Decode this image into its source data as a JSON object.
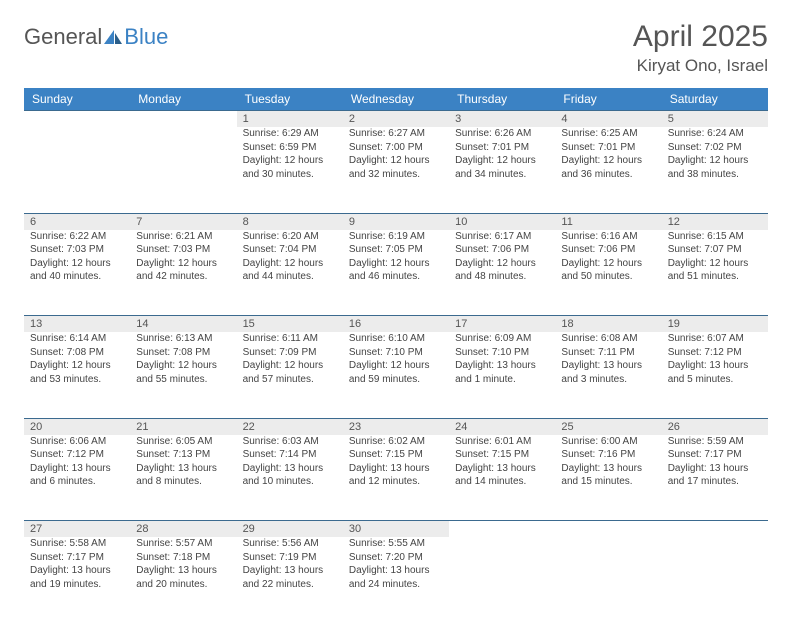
{
  "logo": {
    "word1": "General",
    "word2": "Blue"
  },
  "title": "April 2025",
  "location": "Kiryat Ono, Israel",
  "colors": {
    "header_bg": "#3b82c4",
    "header_text": "#ffffff",
    "daynum_bg": "#ececec",
    "divider": "#3b6a8f",
    "body_text": "#444444",
    "title_text": "#555555"
  },
  "dow": [
    "Sunday",
    "Monday",
    "Tuesday",
    "Wednesday",
    "Thursday",
    "Friday",
    "Saturday"
  ],
  "weeks": [
    [
      null,
      null,
      {
        "n": "1",
        "sr": "Sunrise: 6:29 AM",
        "ss": "Sunset: 6:59 PM",
        "dl1": "Daylight: 12 hours",
        "dl2": "and 30 minutes."
      },
      {
        "n": "2",
        "sr": "Sunrise: 6:27 AM",
        "ss": "Sunset: 7:00 PM",
        "dl1": "Daylight: 12 hours",
        "dl2": "and 32 minutes."
      },
      {
        "n": "3",
        "sr": "Sunrise: 6:26 AM",
        "ss": "Sunset: 7:01 PM",
        "dl1": "Daylight: 12 hours",
        "dl2": "and 34 minutes."
      },
      {
        "n": "4",
        "sr": "Sunrise: 6:25 AM",
        "ss": "Sunset: 7:01 PM",
        "dl1": "Daylight: 12 hours",
        "dl2": "and 36 minutes."
      },
      {
        "n": "5",
        "sr": "Sunrise: 6:24 AM",
        "ss": "Sunset: 7:02 PM",
        "dl1": "Daylight: 12 hours",
        "dl2": "and 38 minutes."
      }
    ],
    [
      {
        "n": "6",
        "sr": "Sunrise: 6:22 AM",
        "ss": "Sunset: 7:03 PM",
        "dl1": "Daylight: 12 hours",
        "dl2": "and 40 minutes."
      },
      {
        "n": "7",
        "sr": "Sunrise: 6:21 AM",
        "ss": "Sunset: 7:03 PM",
        "dl1": "Daylight: 12 hours",
        "dl2": "and 42 minutes."
      },
      {
        "n": "8",
        "sr": "Sunrise: 6:20 AM",
        "ss": "Sunset: 7:04 PM",
        "dl1": "Daylight: 12 hours",
        "dl2": "and 44 minutes."
      },
      {
        "n": "9",
        "sr": "Sunrise: 6:19 AM",
        "ss": "Sunset: 7:05 PM",
        "dl1": "Daylight: 12 hours",
        "dl2": "and 46 minutes."
      },
      {
        "n": "10",
        "sr": "Sunrise: 6:17 AM",
        "ss": "Sunset: 7:06 PM",
        "dl1": "Daylight: 12 hours",
        "dl2": "and 48 minutes."
      },
      {
        "n": "11",
        "sr": "Sunrise: 6:16 AM",
        "ss": "Sunset: 7:06 PM",
        "dl1": "Daylight: 12 hours",
        "dl2": "and 50 minutes."
      },
      {
        "n": "12",
        "sr": "Sunrise: 6:15 AM",
        "ss": "Sunset: 7:07 PM",
        "dl1": "Daylight: 12 hours",
        "dl2": "and 51 minutes."
      }
    ],
    [
      {
        "n": "13",
        "sr": "Sunrise: 6:14 AM",
        "ss": "Sunset: 7:08 PM",
        "dl1": "Daylight: 12 hours",
        "dl2": "and 53 minutes."
      },
      {
        "n": "14",
        "sr": "Sunrise: 6:13 AM",
        "ss": "Sunset: 7:08 PM",
        "dl1": "Daylight: 12 hours",
        "dl2": "and 55 minutes."
      },
      {
        "n": "15",
        "sr": "Sunrise: 6:11 AM",
        "ss": "Sunset: 7:09 PM",
        "dl1": "Daylight: 12 hours",
        "dl2": "and 57 minutes."
      },
      {
        "n": "16",
        "sr": "Sunrise: 6:10 AM",
        "ss": "Sunset: 7:10 PM",
        "dl1": "Daylight: 12 hours",
        "dl2": "and 59 minutes."
      },
      {
        "n": "17",
        "sr": "Sunrise: 6:09 AM",
        "ss": "Sunset: 7:10 PM",
        "dl1": "Daylight: 13 hours",
        "dl2": "and 1 minute."
      },
      {
        "n": "18",
        "sr": "Sunrise: 6:08 AM",
        "ss": "Sunset: 7:11 PM",
        "dl1": "Daylight: 13 hours",
        "dl2": "and 3 minutes."
      },
      {
        "n": "19",
        "sr": "Sunrise: 6:07 AM",
        "ss": "Sunset: 7:12 PM",
        "dl1": "Daylight: 13 hours",
        "dl2": "and 5 minutes."
      }
    ],
    [
      {
        "n": "20",
        "sr": "Sunrise: 6:06 AM",
        "ss": "Sunset: 7:12 PM",
        "dl1": "Daylight: 13 hours",
        "dl2": "and 6 minutes."
      },
      {
        "n": "21",
        "sr": "Sunrise: 6:05 AM",
        "ss": "Sunset: 7:13 PM",
        "dl1": "Daylight: 13 hours",
        "dl2": "and 8 minutes."
      },
      {
        "n": "22",
        "sr": "Sunrise: 6:03 AM",
        "ss": "Sunset: 7:14 PM",
        "dl1": "Daylight: 13 hours",
        "dl2": "and 10 minutes."
      },
      {
        "n": "23",
        "sr": "Sunrise: 6:02 AM",
        "ss": "Sunset: 7:15 PM",
        "dl1": "Daylight: 13 hours",
        "dl2": "and 12 minutes."
      },
      {
        "n": "24",
        "sr": "Sunrise: 6:01 AM",
        "ss": "Sunset: 7:15 PM",
        "dl1": "Daylight: 13 hours",
        "dl2": "and 14 minutes."
      },
      {
        "n": "25",
        "sr": "Sunrise: 6:00 AM",
        "ss": "Sunset: 7:16 PM",
        "dl1": "Daylight: 13 hours",
        "dl2": "and 15 minutes."
      },
      {
        "n": "26",
        "sr": "Sunrise: 5:59 AM",
        "ss": "Sunset: 7:17 PM",
        "dl1": "Daylight: 13 hours",
        "dl2": "and 17 minutes."
      }
    ],
    [
      {
        "n": "27",
        "sr": "Sunrise: 5:58 AM",
        "ss": "Sunset: 7:17 PM",
        "dl1": "Daylight: 13 hours",
        "dl2": "and 19 minutes."
      },
      {
        "n": "28",
        "sr": "Sunrise: 5:57 AM",
        "ss": "Sunset: 7:18 PM",
        "dl1": "Daylight: 13 hours",
        "dl2": "and 20 minutes."
      },
      {
        "n": "29",
        "sr": "Sunrise: 5:56 AM",
        "ss": "Sunset: 7:19 PM",
        "dl1": "Daylight: 13 hours",
        "dl2": "and 22 minutes."
      },
      {
        "n": "30",
        "sr": "Sunrise: 5:55 AM",
        "ss": "Sunset: 7:20 PM",
        "dl1": "Daylight: 13 hours",
        "dl2": "and 24 minutes."
      },
      null,
      null,
      null
    ]
  ]
}
